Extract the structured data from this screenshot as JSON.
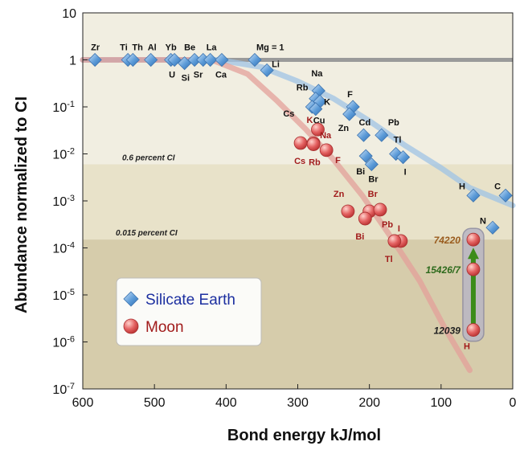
{
  "chart_data": {
    "type": "scatter",
    "xlabel": "Bond energy kJ/mol",
    "ylabel": "Abundance normalized to CI",
    "x_range": [
      600,
      0
    ],
    "y_range_log10": [
      -7,
      1
    ],
    "y_scale": "log",
    "x_ticks": [
      "600",
      "500",
      "400",
      "300",
      "200",
      "100",
      "0"
    ],
    "y_ticks": [
      {
        "base": "10",
        "exp": "-7"
      },
      {
        "base": "10",
        "exp": "-6"
      },
      {
        "base": "10",
        "exp": "-5"
      },
      {
        "base": "10",
        "exp": "-4"
      },
      {
        "base": "10",
        "exp": "-3"
      },
      {
        "base": "10",
        "exp": "-2"
      },
      {
        "base": "10",
        "exp": "-1"
      },
      {
        "base": "1",
        "exp": ""
      },
      {
        "base": "10",
        "exp": ""
      }
    ],
    "bands": [
      {
        "label": "0.6 percent CI",
        "value": 0.006,
        "color": "#e8e2c9"
      },
      {
        "label": "0.015 percent CI",
        "value": 0.00015,
        "color": "#d6ccab"
      },
      {
        "label": "",
        "value": 1e-07,
        "color": "#c6b89c"
      }
    ],
    "top_band_color": "#f1eee1",
    "legend": {
      "position": "bottom-left",
      "items": [
        {
          "label": "Silicate Earth",
          "marker": "diamond",
          "color": "#4b86c9",
          "text_color": "#1c2fa0"
        },
        {
          "label": "Moon",
          "marker": "circle",
          "color": "#e05555",
          "text_color": "#a11b1b"
        }
      ]
    },
    "series": [
      {
        "name": "Silicate Earth",
        "color": "#5b9ad6",
        "label_color": "#111111",
        "points": [
          {
            "label": "Zr",
            "x": 583,
            "y": 1
          },
          {
            "label": "Ti",
            "x": 537,
            "y": 1
          },
          {
            "label": "Th",
            "x": 530,
            "y": 1
          },
          {
            "label": "Al",
            "x": 505,
            "y": 1
          },
          {
            "label": "Yb",
            "x": 477,
            "y": 1
          },
          {
            "label": "U",
            "x": 472,
            "y": 1
          },
          {
            "label": "Si",
            "x": 458,
            "y": 0.85
          },
          {
            "label": "Be",
            "x": 444,
            "y": 1
          },
          {
            "label": "Sr",
            "x": 432,
            "y": 1
          },
          {
            "label": "La",
            "x": 422,
            "y": 1
          },
          {
            "label": "Ca",
            "x": 406,
            "y": 1
          },
          {
            "label": "Mg = 1",
            "x": 360,
            "y": 1
          },
          {
            "label": "Li",
            "x": 343,
            "y": 0.6
          },
          {
            "label": "Na",
            "x": 271,
            "y": 0.22
          },
          {
            "label": "Rb",
            "x": 275,
            "y": 0.15
          },
          {
            "label": "K",
            "x": 269,
            "y": 0.13
          },
          {
            "label": "Cs",
            "x": 280,
            "y": 0.1
          },
          {
            "label": "Cu",
            "x": 275,
            "y": 0.09
          },
          {
            "label": "F",
            "x": 223,
            "y": 0.1
          },
          {
            "label": "Zn",
            "x": 228,
            "y": 0.07
          },
          {
            "label": "Cd",
            "x": 208,
            "y": 0.025
          },
          {
            "label": "Pb",
            "x": 183,
            "y": 0.025
          },
          {
            "label": "Tl",
            "x": 163,
            "y": 0.01
          },
          {
            "label": "Bi",
            "x": 205,
            "y": 0.009
          },
          {
            "label": "I",
            "x": 153,
            "y": 0.0085
          },
          {
            "label": "Br",
            "x": 197,
            "y": 0.006
          },
          {
            "label": "H",
            "x": 55,
            "y": 0.0013
          },
          {
            "label": "C",
            "x": 10,
            "y": 0.0013
          },
          {
            "label": "N",
            "x": 28,
            "y": 0.00027
          }
        ]
      },
      {
        "name": "Moon",
        "color": "#e76565",
        "label_color": "#a11b1b",
        "points": [
          {
            "label": "K",
            "x": 272,
            "y": 0.033
          },
          {
            "label": "Na",
            "x": 278,
            "y": 0.017
          },
          {
            "label": "Cs",
            "x": 296,
            "y": 0.017
          },
          {
            "label": "Rb",
            "x": 278,
            "y": 0.016
          },
          {
            "label": "F",
            "x": 260,
            "y": 0.012
          },
          {
            "label": "Zn",
            "x": 230,
            "y": 0.0006
          },
          {
            "label": "Br",
            "x": 200,
            "y": 0.0006
          },
          {
            "label": "Pb",
            "x": 185,
            "y": 0.00065
          },
          {
            "label": "Bi",
            "x": 206,
            "y": 0.00042
          },
          {
            "label": "I",
            "x": 156,
            "y": 0.00014
          },
          {
            "label": "Tl",
            "x": 165,
            "y": 0.00014
          },
          {
            "label": "H",
            "x": 55,
            "y": 0.00015
          },
          {
            "label": "H",
            "x": 55,
            "y": 3.5e-05
          },
          {
            "label": "H",
            "x": 55,
            "y": 1.8e-06
          }
        ]
      }
    ],
    "trend_curves": [
      {
        "name": "Silicate Earth trend",
        "color": "#9fc3e4",
        "points": [
          [
            620,
            1
          ],
          [
            410,
            1
          ],
          [
            350,
            0.7
          ],
          [
            300,
            0.35
          ],
          [
            250,
            0.15
          ],
          [
            200,
            0.05
          ],
          [
            150,
            0.015
          ],
          [
            100,
            0.005
          ],
          [
            60,
            0.0019
          ],
          [
            0,
            0.0008
          ]
        ]
      },
      {
        "name": "Moon trend",
        "color": "#e3a09a",
        "points": [
          [
            620,
            1
          ],
          [
            420,
            1
          ],
          [
            370,
            0.5
          ],
          [
            330,
            0.14
          ],
          [
            290,
            0.035
          ],
          [
            250,
            0.0075
          ],
          [
            210,
            0.0013
          ],
          [
            170,
            0.00017
          ],
          [
            130,
            2e-05
          ],
          [
            95,
            2e-06
          ],
          [
            60,
            2.5e-07
          ]
        ]
      }
    ],
    "annotations": [
      {
        "text": "74220",
        "x": 55,
        "y": 0.00015,
        "color": "#9a5c1e"
      },
      {
        "text": "15426/7",
        "x": 55,
        "y": 3.5e-05,
        "color": "#2f6b1d"
      },
      {
        "text": "12039",
        "x": 55,
        "y": 1.8e-06,
        "color": "#222222"
      }
    ],
    "arrow": {
      "from_y": 1.8e-06,
      "to_y": 0.00015,
      "x": 55,
      "color": "#3c8c1a"
    },
    "unity_line": {
      "y": 1,
      "color": "#9a9a9a"
    }
  }
}
